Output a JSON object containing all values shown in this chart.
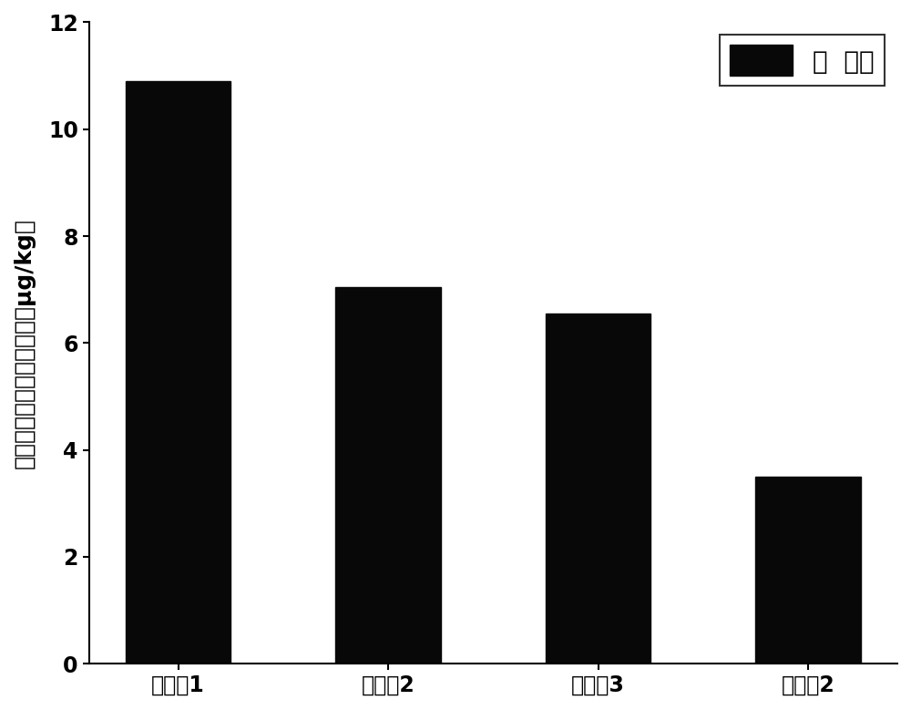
{
  "categories": [
    "对比例1",
    "对比例2",
    "对比例3",
    "实施例2"
  ],
  "values": [
    10.9,
    7.05,
    6.55,
    3.5
  ],
  "bar_color": "#080808",
  "ylabel": "自由溶解态的氟虫脻浓度（μg/kg）",
  "ylim": [
    0,
    12
  ],
  "yticks": [
    0,
    2,
    4,
    6,
    8,
    10,
    12
  ],
  "legend_label": "氟  虫脻",
  "background_color": "#ffffff",
  "bar_width": 0.5,
  "legend_fontsize": 20,
  "axis_fontsize": 18,
  "tick_fontsize": 17
}
